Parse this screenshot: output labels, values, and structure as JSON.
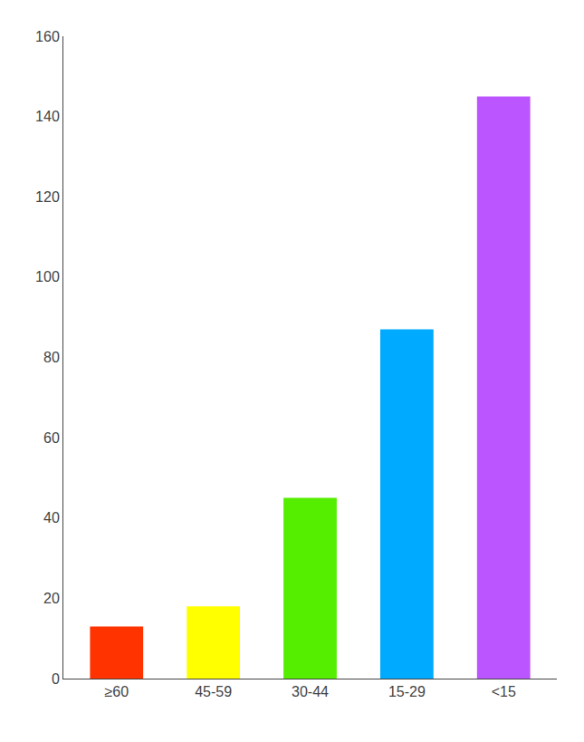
{
  "chart_data": {
    "type": "bar",
    "categories": [
      "≥60",
      "45-59",
      "30-44",
      "15-29",
      "<15"
    ],
    "values": [
      13,
      18,
      45,
      87,
      145
    ],
    "colors": [
      "#FF3300",
      "#FFFF00",
      "#55EE00",
      "#00AAFF",
      "#BB55FF"
    ],
    "ylim": [
      0,
      160
    ],
    "yticks": [
      0,
      20,
      40,
      60,
      80,
      100,
      120,
      140,
      160
    ],
    "grid": false
  }
}
